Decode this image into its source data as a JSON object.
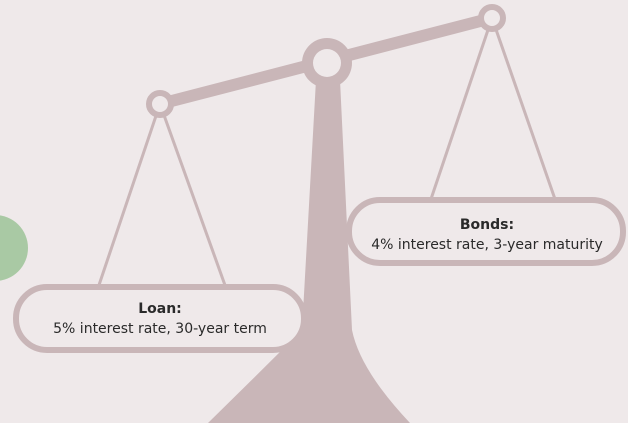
{
  "left_pan": {
    "title": "Loan:",
    "detail": "5% interest rate, 30-year term"
  },
  "right_pan": {
    "title": "Bonds:",
    "detail": "4% interest rate, 3-year maturity"
  }
}
